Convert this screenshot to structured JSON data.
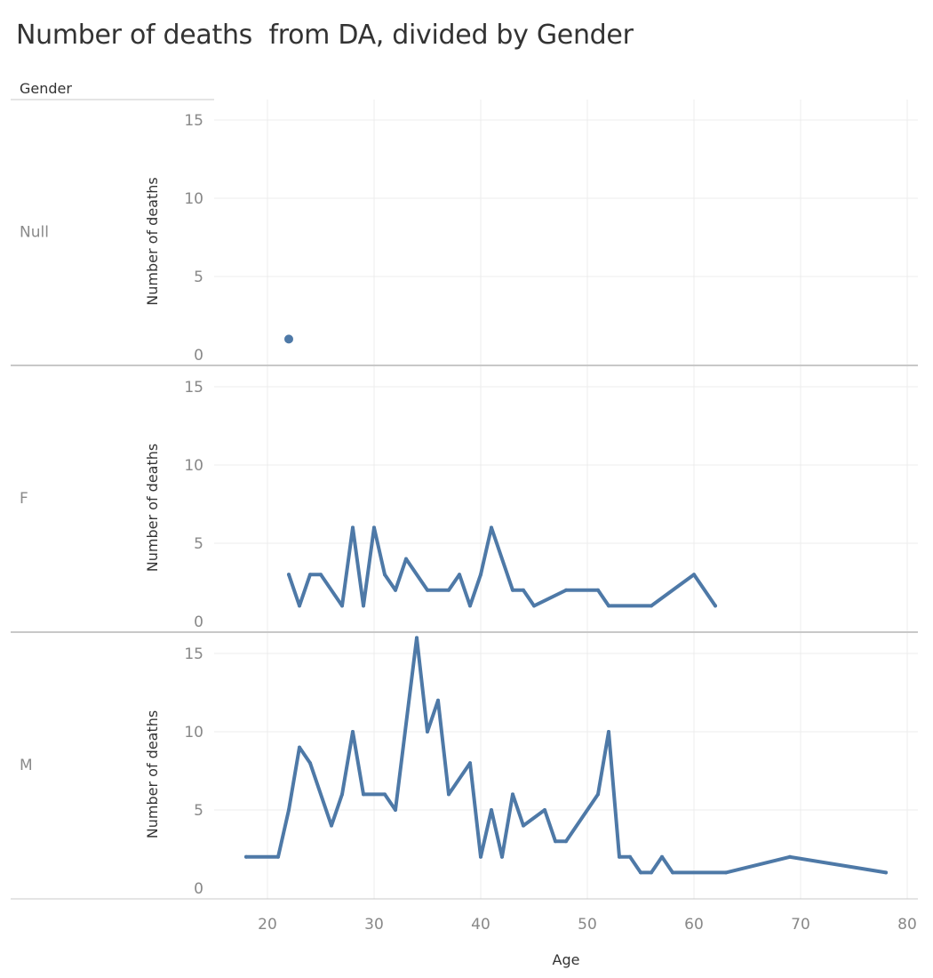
{
  "title": "Number of deaths  from DA, divided by Gender",
  "facet_header": "Gender",
  "colors": {
    "series": "#4e79a7",
    "grid": "#ececec",
    "divider": "#c8c8c8"
  },
  "chart_data": {
    "type": "line",
    "title": "Number of deaths  from DA, divided by Gender",
    "facet_by": "Gender",
    "xlabel": "Age",
    "ylabel": "Number of deaths",
    "xlim": [
      15,
      81
    ],
    "ylim": [
      0,
      17
    ],
    "x_ticks": [
      20,
      30,
      40,
      50,
      60,
      70,
      80
    ],
    "y_ticks": [
      0,
      5,
      10,
      15
    ],
    "grid": true,
    "panels": [
      {
        "label": "Null",
        "points": [
          [
            22,
            1
          ]
        ]
      },
      {
        "label": "F",
        "points": [
          [
            22,
            3
          ],
          [
            23,
            1
          ],
          [
            24,
            3
          ],
          [
            25,
            3
          ],
          [
            27,
            1
          ],
          [
            28,
            6
          ],
          [
            29,
            1
          ],
          [
            30,
            6
          ],
          [
            31,
            3
          ],
          [
            32,
            2
          ],
          [
            33,
            4
          ],
          [
            35,
            2
          ],
          [
            37,
            2
          ],
          [
            38,
            3
          ],
          [
            39,
            1
          ],
          [
            40,
            3
          ],
          [
            41,
            6
          ],
          [
            43,
            2
          ],
          [
            44,
            2
          ],
          [
            45,
            1
          ],
          [
            48,
            2
          ],
          [
            51,
            2
          ],
          [
            52,
            1
          ],
          [
            56,
            1
          ],
          [
            60,
            3
          ],
          [
            62,
            1
          ]
        ]
      },
      {
        "label": "M",
        "points": [
          [
            18,
            2
          ],
          [
            21,
            2
          ],
          [
            22,
            5
          ],
          [
            23,
            9
          ],
          [
            24,
            8
          ],
          [
            26,
            4
          ],
          [
            27,
            6
          ],
          [
            28,
            10
          ],
          [
            29,
            6
          ],
          [
            31,
            6
          ],
          [
            32,
            5
          ],
          [
            34,
            16
          ],
          [
            35,
            10
          ],
          [
            36,
            12
          ],
          [
            37,
            6
          ],
          [
            39,
            8
          ],
          [
            40,
            2
          ],
          [
            41,
            5
          ],
          [
            42,
            2
          ],
          [
            43,
            6
          ],
          [
            44,
            4
          ],
          [
            46,
            5
          ],
          [
            47,
            3
          ],
          [
            48,
            3
          ],
          [
            51,
            6
          ],
          [
            52,
            10
          ],
          [
            53,
            2
          ],
          [
            54,
            2
          ],
          [
            55,
            1
          ],
          [
            56,
            1
          ],
          [
            57,
            2
          ],
          [
            58,
            1
          ],
          [
            63,
            1
          ],
          [
            69,
            2
          ],
          [
            78,
            1
          ]
        ]
      }
    ]
  }
}
